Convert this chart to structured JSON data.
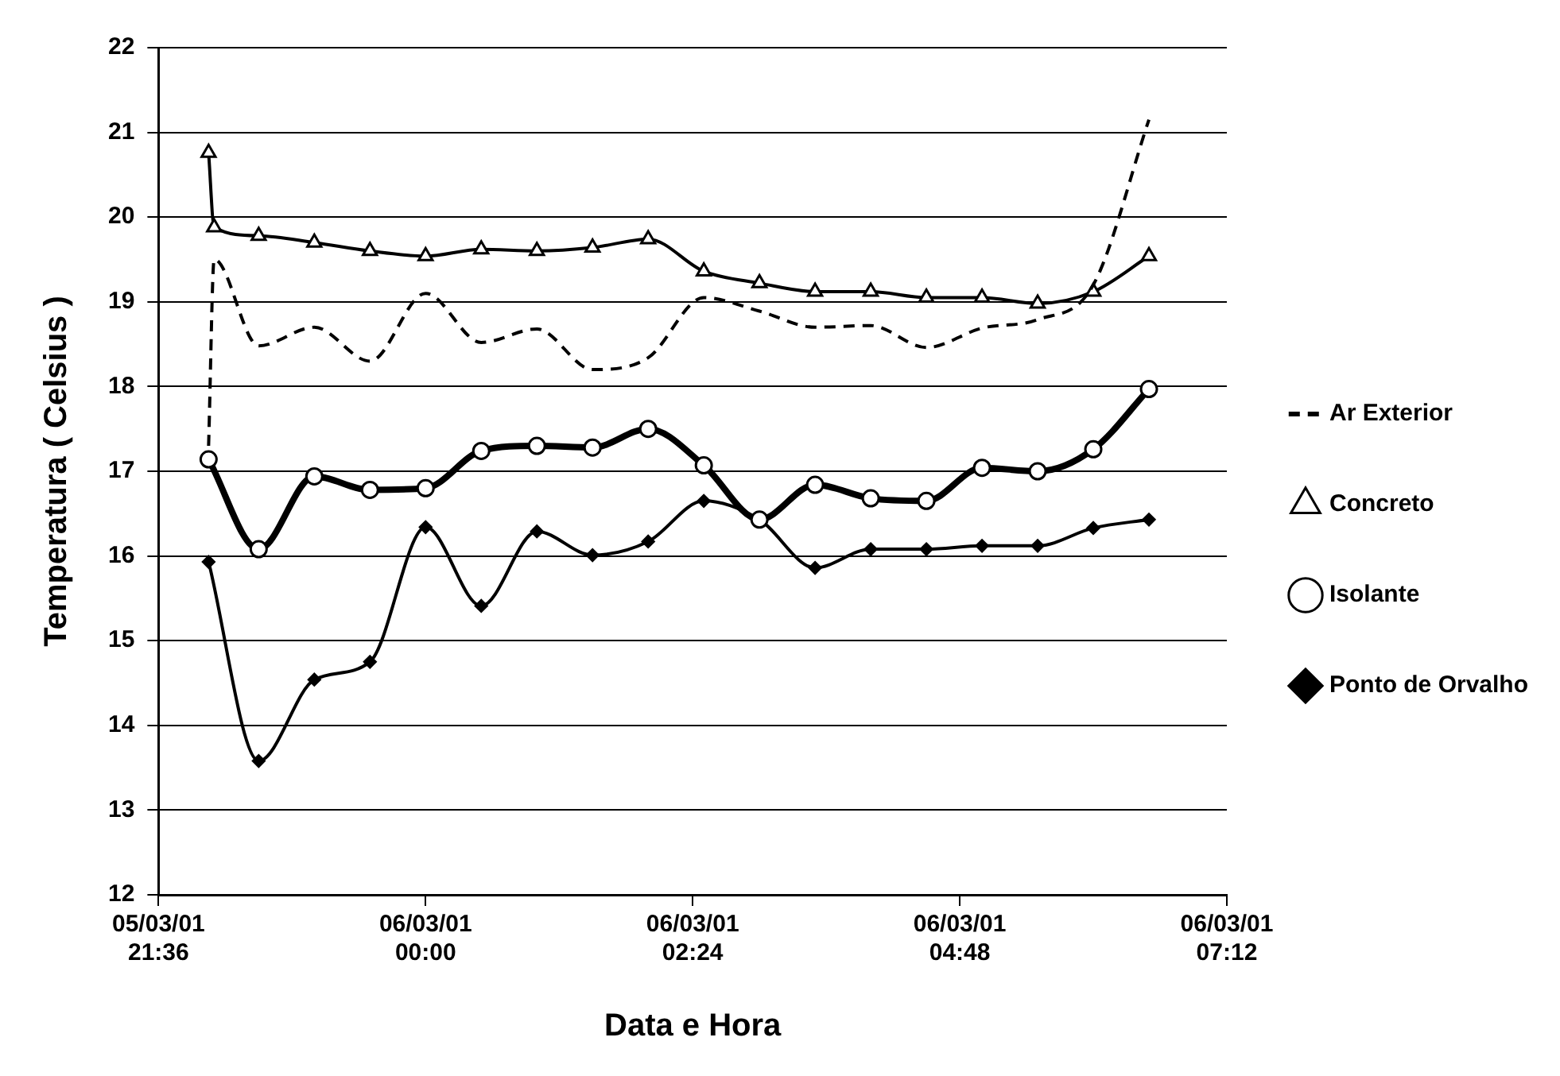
{
  "chart_data": {
    "type": "line",
    "xlabel": "Data e Hora",
    "ylabel": "Temperatura ( Celsius )",
    "xlim": [
      "--03-05T21:36",
      "--03-06T07:12"
    ],
    "xticks": [
      {
        "value": "--03-05T21:36",
        "label": "05/03/01 21:36"
      },
      {
        "value": "--03-06T00:00",
        "label": "06/03/01 00:00"
      },
      {
        "value": "--03-06T02:24",
        "label": "06/03/01 02:24"
      },
      {
        "value": "--03-06T04:48",
        "label": "06/03/01 04:48"
      },
      {
        "value": "--03-06T07:12",
        "label": "06/03/01 07:12"
      }
    ],
    "ylim": [
      12,
      22
    ],
    "yticks": [
      12,
      13,
      14,
      15,
      16,
      17,
      18,
      19,
      20,
      21,
      22
    ],
    "grid": "y",
    "legend": "right",
    "series": [
      {
        "name": "Ar Exterior",
        "color": "#000000",
        "marker": "none",
        "line_style": "dashed",
        "x": [
          "--03-05T22:03",
          "--03-05T22:06",
          "--03-05T22:30",
          "--03-05T23:00",
          "--03-05T23:30",
          "--03-06T00:00",
          "--03-06T00:30",
          "--03-06T01:00",
          "--03-06T01:30",
          "--03-06T02:00",
          "--03-06T02:30",
          "--03-06T03:00",
          "--03-06T03:30",
          "--03-06T04:00",
          "--03-06T04:30",
          "--03-06T05:00",
          "--03-06T05:30",
          "--03-06T06:00",
          "--03-06T06:30"
        ],
        "values": [
          17.3,
          19.5,
          18.48,
          18.7,
          18.3,
          19.1,
          18.52,
          18.68,
          18.2,
          18.34,
          19.05,
          18.89,
          18.7,
          18.72,
          18.46,
          18.69,
          18.79,
          19.2,
          21.15
        ]
      },
      {
        "name": "Concreto",
        "color": "#000000",
        "marker": "triangle",
        "line_style": "solid",
        "x": [
          "--03-05T22:03",
          "--03-05T22:06",
          "--03-05T22:30",
          "--03-05T23:00",
          "--03-05T23:30",
          "--03-06T00:00",
          "--03-06T00:30",
          "--03-06T01:00",
          "--03-06T01:30",
          "--03-06T02:00",
          "--03-06T02:30",
          "--03-06T03:00",
          "--03-06T03:30",
          "--03-06T04:00",
          "--03-06T04:30",
          "--03-06T05:00",
          "--03-06T05:30",
          "--03-06T06:00",
          "--03-06T06:30"
        ],
        "values": [
          20.76,
          19.88,
          19.78,
          19.7,
          19.6,
          19.54,
          19.62,
          19.6,
          19.64,
          19.74,
          19.36,
          19.22,
          19.12,
          19.12,
          19.05,
          19.05,
          18.98,
          19.12,
          19.54
        ]
      },
      {
        "name": "Isolante",
        "color": "#000000",
        "marker": "circle",
        "line_style": "solid",
        "x": [
          "--03-05T22:03",
          "--03-05T22:30",
          "--03-05T23:00",
          "--03-05T23:30",
          "--03-06T00:00",
          "--03-06T00:30",
          "--03-06T01:00",
          "--03-06T01:30",
          "--03-06T02:00",
          "--03-06T02:30",
          "--03-06T03:00",
          "--03-06T03:30",
          "--03-06T04:00",
          "--03-06T04:30",
          "--03-06T05:00",
          "--03-06T05:30",
          "--03-06T06:00",
          "--03-06T06:30"
        ],
        "values": [
          17.14,
          16.08,
          16.94,
          16.78,
          16.8,
          17.24,
          17.3,
          17.28,
          17.5,
          17.07,
          16.43,
          16.84,
          16.68,
          16.65,
          17.04,
          17.0,
          17.26,
          17.97
        ]
      },
      {
        "name": "Ponto de Orvalho",
        "color": "#000000",
        "marker": "diamond",
        "line_style": "solid",
        "x": [
          "--03-05T22:03",
          "--03-05T22:30",
          "--03-05T23:00",
          "--03-05T23:30",
          "--03-06T00:00",
          "--03-06T00:30",
          "--03-06T01:00",
          "--03-06T01:30",
          "--03-06T02:00",
          "--03-06T02:30",
          "--03-06T03:00",
          "--03-06T03:30",
          "--03-06T04:00",
          "--03-06T04:30",
          "--03-06T05:00",
          "--03-06T05:30",
          "--03-06T06:00",
          "--03-06T06:30"
        ],
        "values": [
          15.93,
          13.58,
          14.54,
          14.75,
          16.34,
          15.41,
          16.29,
          16.01,
          16.17,
          16.65,
          16.43,
          15.86,
          16.08,
          16.08,
          16.12,
          16.12,
          16.33,
          16.43
        ]
      }
    ]
  }
}
